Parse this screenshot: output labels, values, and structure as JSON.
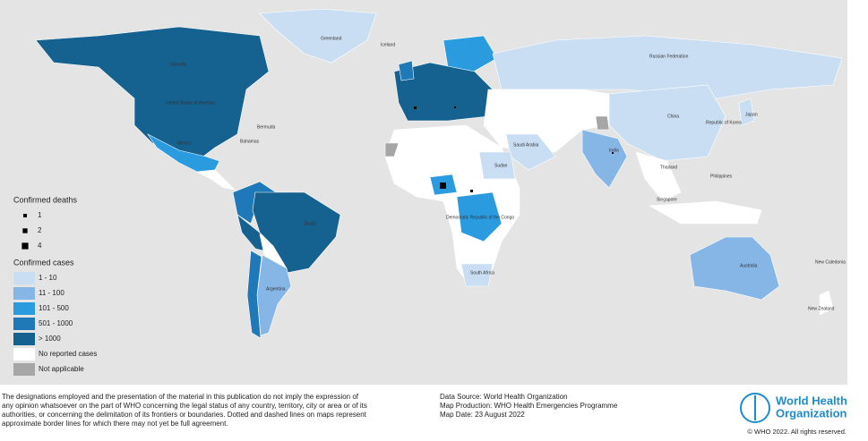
{
  "legend": {
    "deaths_title": "Confirmed deaths",
    "deaths": [
      1,
      2,
      4
    ],
    "cases_title": "Confirmed cases",
    "cases": [
      {
        "label": "1 - 10",
        "color": "#c9def3"
      },
      {
        "label": "11 - 100",
        "color": "#86b6e6"
      },
      {
        "label": "101 - 500",
        "color": "#2b9be0"
      },
      {
        "label": "501 - 1000",
        "color": "#1f78b8"
      },
      {
        "label": "> 1000",
        "color": "#15618f"
      },
      {
        "label": "No reported cases",
        "color": "#ffffff"
      },
      {
        "label": "Not applicable",
        "color": "#a6a6a6"
      }
    ]
  },
  "map_labels": [
    "Greenland",
    "Iceland",
    "Russian Federation",
    "Canada",
    "United States of America",
    "Mexico",
    "Brazil",
    "Argentina",
    "China",
    "India",
    "Australia",
    "New Zealand",
    "New Caledonia",
    "Philippines",
    "Singapore",
    "Thailand",
    "Japan",
    "Republic of Korea",
    "Sudan",
    "South Africa",
    "Democratic Republic of the Congo",
    "Saudi Arabia",
    "Bermuda",
    "Bahamas"
  ],
  "footer": {
    "disclaimer": [
      "The designations employed and the presentation of the material in this publication do not imply the expression of",
      "any opinion whatsoever on the part of WHO concerning the legal status of any country, territory, city or area or of its",
      "authorities, or concerning the delimitation of its frontiers or boundaries. Dotted and dashed lines on maps represent",
      "approximate border lines for which there may not yet be full agreement."
    ],
    "source": [
      "Data Source: World Health Organization",
      "Map Production: WHO Health Emergencies Programme",
      "Map Date: 23 August 2022"
    ]
  },
  "logo": {
    "line1": "World Health",
    "line2": "Organization"
  },
  "copyright": "© WHO 2022. All rights reserved."
}
